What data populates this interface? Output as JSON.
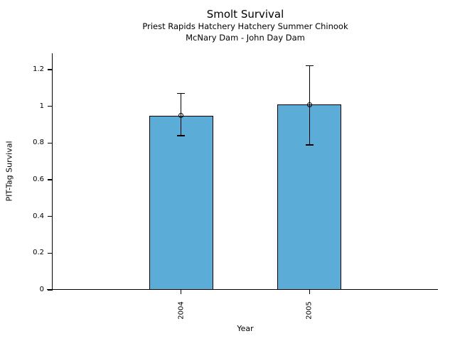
{
  "chart_data": {
    "type": "bar",
    "title": "Smolt Survival",
    "subtitle_lines": [
      "Priest Rapids Hatchery Hatchery Summer Chinook",
      "McNary Dam - John Day Dam"
    ],
    "xlabel": "Year",
    "ylabel": "PIT-Tag Survival",
    "categories": [
      "2004",
      "2005"
    ],
    "values": [
      0.95,
      1.01
    ],
    "error_bars": {
      "low": [
        0.84,
        0.79
      ],
      "high": [
        1.07,
        1.22
      ]
    },
    "marker": "open-circle",
    "ylim": [
      0,
      1.289
    ],
    "yticks": [
      0,
      0.2,
      0.4,
      0.6,
      0.8,
      1,
      1.2
    ],
    "ytick_labels": [
      "0",
      "0.2",
      "0.4",
      "0.6",
      "0.8",
      "1",
      "1.2"
    ],
    "bar_color": "#5BACD6",
    "bar_edge_color": "#000000",
    "text_color": "#000000",
    "background_color": "#FFFFFF",
    "grid": false,
    "legend": null
  }
}
